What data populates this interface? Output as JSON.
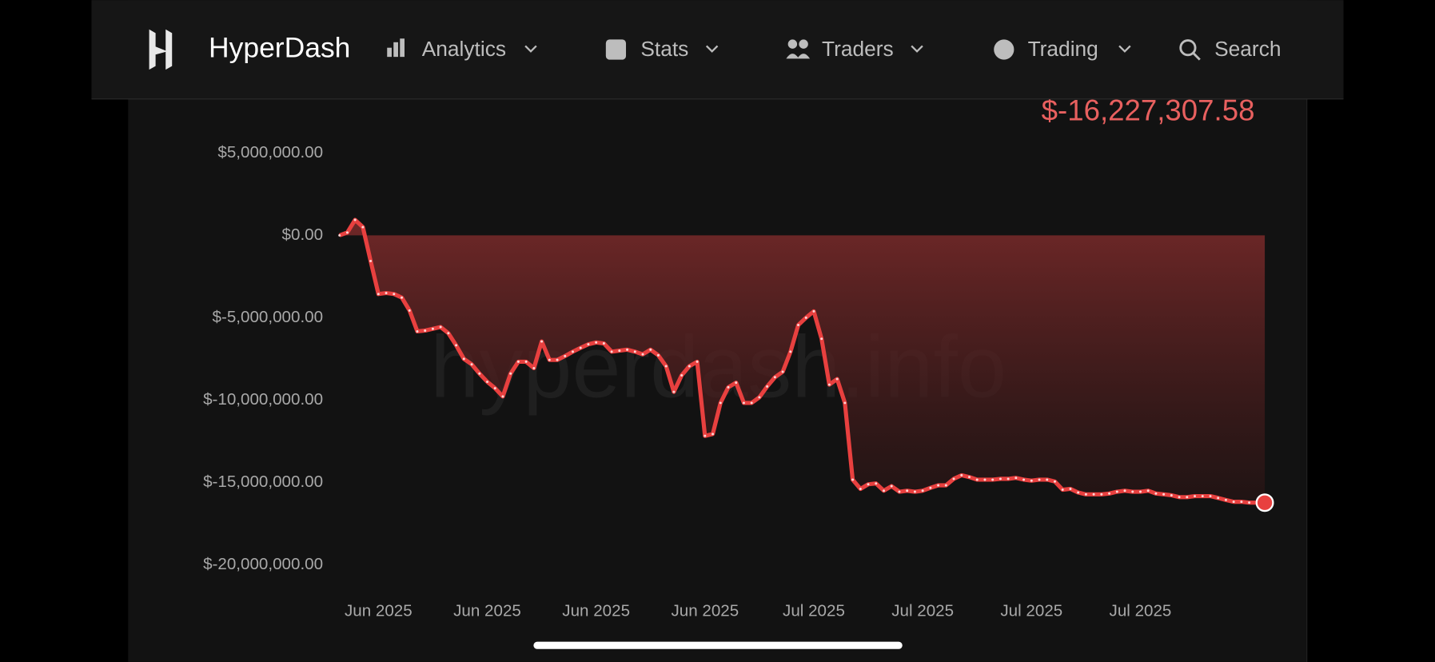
{
  "nav": {
    "brand": "HyperDash",
    "items": [
      "Analytics",
      "Stats",
      "Traders",
      "Trading",
      "Search"
    ]
  },
  "watermark": "hyperdash.info",
  "chart_data": {
    "type": "area",
    "annotation": "$-16,227,307.58",
    "color": "#e8403f",
    "categories": [
      null,
      null,
      null,
      null,
      null,
      "Jun 2025",
      null,
      null,
      null,
      null,
      null,
      null,
      null,
      null,
      null,
      null,
      null,
      null,
      null,
      "Jun 2025",
      null,
      null,
      null,
      null,
      null,
      null,
      null,
      null,
      null,
      null,
      null,
      null,
      null,
      "Jun 2025",
      null,
      null,
      null,
      null,
      null,
      null,
      null,
      null,
      null,
      null,
      null,
      null,
      null,
      "Jun 2025",
      null,
      null,
      null,
      null,
      null,
      null,
      null,
      null,
      null,
      null,
      null,
      null,
      null,
      "Jul 2025",
      null,
      null,
      null,
      null,
      null,
      null,
      null,
      null,
      null,
      null,
      null,
      null,
      null,
      "Jul 2025",
      null,
      null,
      null,
      null,
      null,
      null,
      null,
      null,
      null,
      null,
      null,
      null,
      null,
      "Jul 2025",
      null,
      null,
      null,
      null,
      null,
      null,
      null,
      null,
      null,
      null,
      null,
      null,
      null,
      "Jul 2025",
      null,
      null,
      null,
      null,
      null,
      null,
      null,
      null,
      null,
      null,
      null,
      null,
      null,
      null,
      null,
      null
    ],
    "values": [
      0,
      170000,
      940000,
      500000,
      -1560000,
      -3560000,
      -3500000,
      -3560000,
      -3780000,
      -4560000,
      -5830000,
      -5780000,
      -5670000,
      -5560000,
      -5940000,
      -6670000,
      -7500000,
      -7830000,
      -8390000,
      -8890000,
      -9280000,
      -9780000,
      -8390000,
      -7670000,
      -7670000,
      -8060000,
      -6440000,
      -7560000,
      -7560000,
      -7330000,
      -7060000,
      -6830000,
      -6610000,
      -6500000,
      -6560000,
      -7060000,
      -7000000,
      -6940000,
      -7060000,
      -7220000,
      -6940000,
      -7280000,
      -7940000,
      -9500000,
      -8500000,
      -7940000,
      -7670000,
      -12170000,
      -12060000,
      -10170000,
      -9220000,
      -8940000,
      -10170000,
      -10170000,
      -9830000,
      -9170000,
      -8610000,
      -8280000,
      -7060000,
      -5440000,
      -5000000,
      -4610000,
      -6280000,
      -9060000,
      -8720000,
      -10170000,
      -14830000,
      -15390000,
      -15110000,
      -15060000,
      -15500000,
      -15220000,
      -15560000,
      -15500000,
      -15560000,
      -15500000,
      -15330000,
      -15170000,
      -15170000,
      -14780000,
      -14560000,
      -14670000,
      -14830000,
      -14830000,
      -14830000,
      -14780000,
      -14780000,
      -14720000,
      -14830000,
      -14890000,
      -14830000,
      -14830000,
      -14940000,
      -15440000,
      -15390000,
      -15610000,
      -15720000,
      -15720000,
      -15720000,
      -15670000,
      -15560000,
      -15500000,
      -15560000,
      -15560000,
      -15500000,
      -15670000,
      -15720000,
      -15780000,
      -15890000,
      -15890000,
      -15830000,
      -15830000,
      -15830000,
      -15940000,
      -16060000,
      -16170000,
      -16170000,
      -16220000,
      -16220000,
      -16227307.58
    ],
    "ylim": [
      -20000000,
      5000000
    ],
    "yticks": [
      {
        "value": 5000000,
        "label": "$5,000,000.00"
      },
      {
        "value": 0,
        "label": "$0.00"
      },
      {
        "value": -5000000,
        "label": "$-5,000,000.00"
      },
      {
        "value": -10000000,
        "label": "$-10,000,000.00"
      },
      {
        "value": -15000000,
        "label": "$-15,000,000.00"
      },
      {
        "value": -20000000,
        "label": "$-20,000,000.00"
      }
    ]
  }
}
